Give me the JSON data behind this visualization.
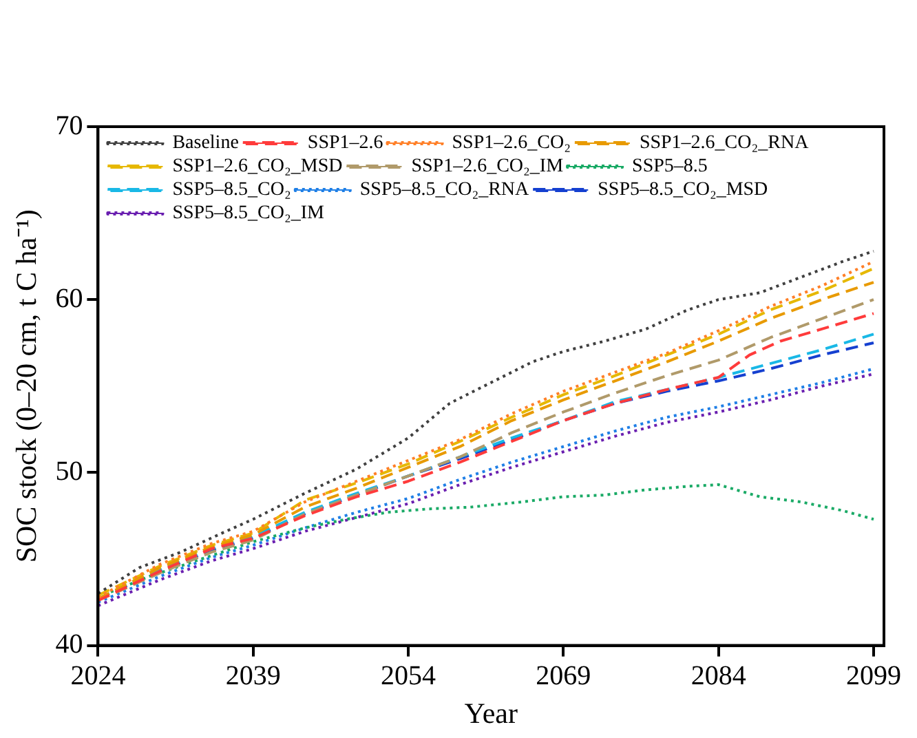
{
  "chart_data": {
    "type": "line",
    "xlabel": "Year",
    "ylabel": "SOC stock (0–20 cm, t C ha⁻¹)",
    "xlim": [
      2024,
      2100
    ],
    "xticks": [
      2024,
      2039,
      2054,
      2069,
      2084,
      2099
    ],
    "ylim": [
      40,
      70
    ],
    "yticks": [
      40,
      50,
      60,
      70
    ],
    "grid": false,
    "legend": "top left",
    "marker": "none",
    "series": [
      {
        "name": "Baseline",
        "color": "#404040",
        "line_style": "dotted",
        "x": [
          2024,
          2028,
          2032,
          2036,
          2039,
          2044,
          2049,
          2054,
          2058,
          2062,
          2066,
          2069,
          2073,
          2077,
          2081,
          2084,
          2088,
          2092,
          2096,
          2099
        ],
        "values": [
          43.0,
          44.5,
          45.4,
          46.5,
          47.3,
          48.8,
          50.2,
          52.0,
          54.0,
          55.2,
          56.4,
          57.0,
          57.6,
          58.3,
          59.4,
          60.0,
          60.4,
          61.3,
          62.2,
          62.8
        ]
      },
      {
        "name": "SSP1–2.6",
        "color": "#ff3b3b",
        "line_style": "dashed",
        "x": [
          2024,
          2030,
          2035,
          2039,
          2044,
          2049,
          2054,
          2059,
          2064,
          2069,
          2074,
          2079,
          2084,
          2087,
          2090,
          2094,
          2099
        ],
        "values": [
          42.6,
          44.3,
          45.6,
          46.2,
          47.5,
          48.6,
          49.5,
          50.6,
          51.8,
          53.0,
          54.0,
          54.8,
          55.5,
          56.8,
          57.6,
          58.3,
          59.2
        ]
      },
      {
        "name": "SSP1–2.6_CO₂",
        "color": "#ff7f27",
        "line_style": "dotted",
        "x": [
          2024,
          2030,
          2035,
          2039,
          2044,
          2049,
          2054,
          2059,
          2064,
          2069,
          2074,
          2079,
          2084,
          2089,
          2094,
          2099
        ],
        "values": [
          42.8,
          44.7,
          45.9,
          46.6,
          48.3,
          49.5,
          50.7,
          51.9,
          53.4,
          54.7,
          55.8,
          56.9,
          58.2,
          59.6,
          60.8,
          62.2
        ]
      },
      {
        "name": "SSP1–2.6_CO₂_RNA",
        "color": "#e89a00",
        "line_style": "dashed",
        "x": [
          2024,
          2030,
          2035,
          2039,
          2044,
          2049,
          2054,
          2059,
          2064,
          2069,
          2074,
          2079,
          2084,
          2089,
          2094,
          2099
        ],
        "values": [
          42.7,
          44.5,
          45.7,
          46.4,
          48.0,
          49.1,
          50.3,
          51.5,
          53.0,
          54.2,
          55.3,
          56.4,
          57.6,
          58.9,
          60.0,
          61.0
        ]
      },
      {
        "name": "SSP1–2.6_CO₂_MSD",
        "color": "#e6b800",
        "line_style": "dashed",
        "x": [
          2024,
          2030,
          2035,
          2039,
          2044,
          2049,
          2054,
          2059,
          2064,
          2069,
          2074,
          2079,
          2084,
          2089,
          2094,
          2099
        ],
        "values": [
          42.9,
          44.6,
          45.8,
          46.5,
          48.4,
          49.4,
          50.5,
          51.8,
          53.2,
          54.5,
          55.6,
          56.8,
          58.0,
          59.4,
          60.5,
          61.8
        ]
      },
      {
        "name": "SSP1–2.6_CO₂_IM",
        "color": "#b09a6a",
        "line_style": "dashed",
        "x": [
          2024,
          2030,
          2035,
          2039,
          2044,
          2049,
          2054,
          2059,
          2064,
          2069,
          2074,
          2079,
          2084,
          2089,
          2094,
          2099
        ],
        "values": [
          42.6,
          44.2,
          45.4,
          46.1,
          47.6,
          48.7,
          49.8,
          50.9,
          52.3,
          53.5,
          54.6,
          55.6,
          56.5,
          57.8,
          58.9,
          60.0
        ]
      },
      {
        "name": "SSP5–8.5",
        "color": "#1aaa66",
        "line_style": "dotted",
        "x": [
          2024,
          2029,
          2034,
          2039,
          2044,
          2048,
          2052,
          2056,
          2060,
          2065,
          2069,
          2073,
          2077,
          2081,
          2084,
          2088,
          2092,
          2096,
          2099
        ],
        "values": [
          42.8,
          44.0,
          45.0,
          46.0,
          46.8,
          47.3,
          47.7,
          47.9,
          48.0,
          48.3,
          48.6,
          48.7,
          49.0,
          49.2,
          49.3,
          48.6,
          48.3,
          47.8,
          47.3
        ]
      },
      {
        "name": "SSP5–8.5_CO₂",
        "color": "#19b8e6",
        "line_style": "dashed",
        "x": [
          2024,
          2030,
          2035,
          2039,
          2044,
          2049,
          2054,
          2059,
          2064,
          2069,
          2074,
          2079,
          2084,
          2089,
          2094,
          2099
        ],
        "values": [
          42.7,
          44.4,
          45.6,
          46.3,
          47.7,
          48.8,
          49.8,
          50.9,
          52.0,
          53.0,
          54.1,
          54.8,
          55.5,
          56.3,
          57.1,
          58.0
        ]
      },
      {
        "name": "SSP5–8.5_CO₂_RNA",
        "color": "#1f7fe6",
        "line_style": "dotted",
        "x": [
          2024,
          2030,
          2035,
          2039,
          2044,
          2049,
          2054,
          2059,
          2064,
          2069,
          2074,
          2079,
          2084,
          2089,
          2094,
          2099
        ],
        "values": [
          42.5,
          44.0,
          45.1,
          45.8,
          46.8,
          47.7,
          48.5,
          49.6,
          50.6,
          51.5,
          52.4,
          53.2,
          53.8,
          54.5,
          55.2,
          56.0
        ]
      },
      {
        "name": "SSP5–8.5_CO₂_MSD",
        "color": "#1540d0",
        "line_style": "dashed",
        "x": [
          2024,
          2030,
          2035,
          2039,
          2044,
          2049,
          2054,
          2059,
          2064,
          2069,
          2074,
          2079,
          2084,
          2089,
          2094,
          2099
        ],
        "values": [
          42.7,
          44.3,
          45.5,
          46.2,
          47.6,
          48.7,
          49.8,
          50.8,
          51.9,
          53.0,
          54.0,
          54.7,
          55.3,
          56.0,
          56.8,
          57.5
        ]
      },
      {
        "name": "SSP5–8.5_CO₂_IM",
        "color": "#6a1fb0",
        "line_style": "dotted",
        "x": [
          2024,
          2030,
          2035,
          2039,
          2044,
          2049,
          2054,
          2059,
          2064,
          2069,
          2074,
          2079,
          2084,
          2089,
          2094,
          2099
        ],
        "values": [
          42.3,
          43.8,
          44.9,
          45.6,
          46.6,
          47.4,
          48.2,
          49.3,
          50.3,
          51.2,
          52.1,
          52.9,
          53.5,
          54.2,
          55.0,
          55.7
        ]
      }
    ]
  }
}
